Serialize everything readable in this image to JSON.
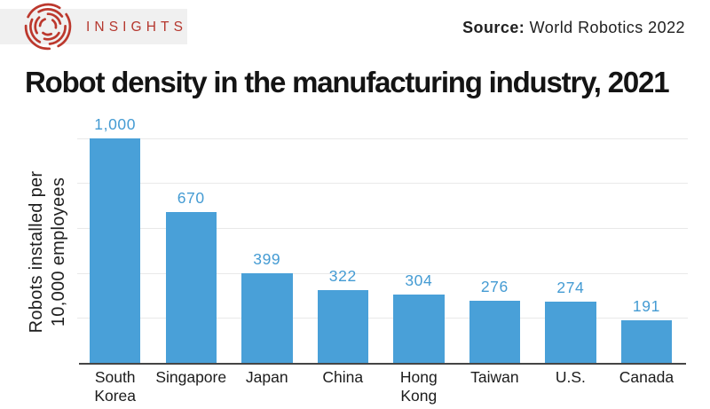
{
  "header": {
    "brand": "INSIGHTS",
    "source_label": "Source:",
    "source_value": " World Robotics 2022"
  },
  "title": "Robot density in the manufacturing industry, 2021",
  "chart_data": {
    "type": "bar",
    "title": "Robot density in the manufacturing industry, 2021",
    "categories": [
      "South Korea",
      "Singapore",
      "Japan",
      "China",
      "Hong Kong",
      "Taiwan",
      "U.S.",
      "Canada"
    ],
    "category_lines": [
      [
        "South",
        "Korea"
      ],
      [
        "Singapore"
      ],
      [
        "Japan"
      ],
      [
        "China"
      ],
      [
        "Hong",
        "Kong"
      ],
      [
        "Taiwan"
      ],
      [
        "U.S."
      ],
      [
        "Canada"
      ]
    ],
    "values": [
      1000,
      670,
      399,
      322,
      304,
      276,
      274,
      191
    ],
    "value_labels": [
      "1,000",
      "670",
      "399",
      "322",
      "304",
      "276",
      "274",
      "191"
    ],
    "ylabel_lines": [
      "Robots installed per",
      "10,000 employees"
    ],
    "ylabel": "Robots installed per 10,000 employees",
    "xlabel": "",
    "ylim": [
      0,
      1000
    ],
    "gridline_values": [
      200,
      400,
      600,
      800,
      1000
    ],
    "grid": "horizontal",
    "legend": "none",
    "colors": {
      "bar": "#49a0d8",
      "value_label": "#449bd3",
      "axis_line": "#454545",
      "gridline": "#e9e9e9",
      "text": "#1c1c1c",
      "brand_red": "#b5372e",
      "band_gray": "#f0f0f0"
    }
  }
}
